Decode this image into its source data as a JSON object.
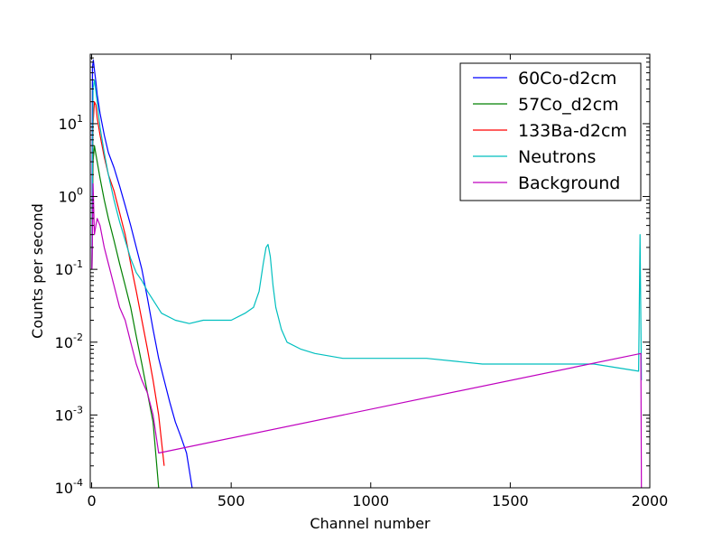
{
  "chart_data": {
    "type": "line",
    "title": "",
    "xlabel": "Channel number",
    "ylabel": "Counts per second",
    "xlim": [
      -5,
      2000
    ],
    "ylim": [
      0.0001,
      90
    ],
    "yscale": "log",
    "grid": false,
    "legend_position": "top-right",
    "x_ticks": [
      {
        "value": 0,
        "label": "0"
      },
      {
        "value": 500,
        "label": "500"
      },
      {
        "value": 1000,
        "label": "1000"
      },
      {
        "value": 1500,
        "label": "1500"
      },
      {
        "value": 2000,
        "label": "2000"
      }
    ],
    "y_ticks": [
      {
        "value": 0.0001,
        "base": "10",
        "exp": "-4"
      },
      {
        "value": 0.001,
        "base": "10",
        "exp": "-3"
      },
      {
        "value": 0.01,
        "base": "10",
        "exp": "-2"
      },
      {
        "value": 0.1,
        "base": "10",
        "exp": "-1"
      },
      {
        "value": 1,
        "base": "10",
        "exp": "0"
      },
      {
        "value": 10,
        "base": "10",
        "exp": "1"
      }
    ],
    "series": [
      {
        "name": "60Co-d2cm",
        "color": "#0000ff",
        "x": [
          1,
          3,
          6,
          10,
          15,
          20,
          30,
          45,
          60,
          80,
          100,
          120,
          140,
          160,
          180,
          200,
          220,
          240,
          260,
          280,
          300,
          320,
          340,
          360
        ],
        "y": [
          0.1,
          60,
          75,
          55,
          38,
          25,
          14,
          7,
          4,
          2.5,
          1.4,
          0.75,
          0.4,
          0.2,
          0.1,
          0.04,
          0.015,
          0.006,
          0.003,
          0.0015,
          0.0008,
          0.0005,
          0.0003,
          0.0001
        ]
      },
      {
        "name": "57Co_d2cm",
        "color": "#008000",
        "x": [
          1,
          5,
          10,
          20,
          30,
          45,
          60,
          80,
          100,
          120,
          140,
          160,
          180,
          200,
          220,
          240
        ],
        "y": [
          0.1,
          3,
          5,
          3,
          1.8,
          0.9,
          0.5,
          0.25,
          0.12,
          0.06,
          0.03,
          0.012,
          0.005,
          0.002,
          0.0008,
          0.0001
        ]
      },
      {
        "name": "133Ba-d2cm",
        "color": "#ff0000",
        "x": [
          1,
          5,
          10,
          15,
          20,
          30,
          45,
          60,
          80,
          100,
          120,
          140,
          160,
          180,
          200,
          220,
          240,
          260
        ],
        "y": [
          0.1,
          10,
          20,
          18,
          12,
          7,
          3.5,
          2,
          1.2,
          0.6,
          0.3,
          0.12,
          0.05,
          0.02,
          0.008,
          0.003,
          0.001,
          0.0002
        ]
      },
      {
        "name": "Neutrons",
        "color": "#00bfbf",
        "x": [
          1,
          5,
          10,
          20,
          30,
          45,
          60,
          80,
          100,
          120,
          140,
          160,
          180,
          200,
          250,
          300,
          350,
          400,
          450,
          500,
          550,
          580,
          600,
          615,
          625,
          632,
          640,
          650,
          660,
          680,
          700,
          750,
          800,
          900,
          1000,
          1200,
          1400,
          1600,
          1800,
          1960,
          1965,
          1970
        ],
        "y": [
          0.1,
          30,
          40,
          20,
          9,
          4,
          2,
          0.9,
          0.45,
          0.25,
          0.14,
          0.09,
          0.07,
          0.05,
          0.025,
          0.02,
          0.018,
          0.02,
          0.02,
          0.02,
          0.025,
          0.03,
          0.05,
          0.12,
          0.2,
          0.22,
          0.15,
          0.06,
          0.03,
          0.015,
          0.01,
          0.008,
          0.007,
          0.006,
          0.006,
          0.006,
          0.005,
          0.005,
          0.005,
          0.004,
          0.3,
          0.003
        ]
      },
      {
        "name": "Background",
        "color": "#bf00bf",
        "x": [
          1,
          5,
          10,
          15,
          20,
          30,
          45,
          60,
          80,
          100,
          120,
          140,
          160,
          180,
          200,
          220,
          240,
          1968,
          1970
        ],
        "y": [
          0.1,
          1.5,
          0.3,
          0.4,
          0.5,
          0.4,
          0.2,
          0.12,
          0.06,
          0.03,
          0.02,
          0.01,
          0.005,
          0.003,
          0.002,
          0.001,
          0.0003,
          0.007,
          0.0001
        ]
      }
    ]
  }
}
